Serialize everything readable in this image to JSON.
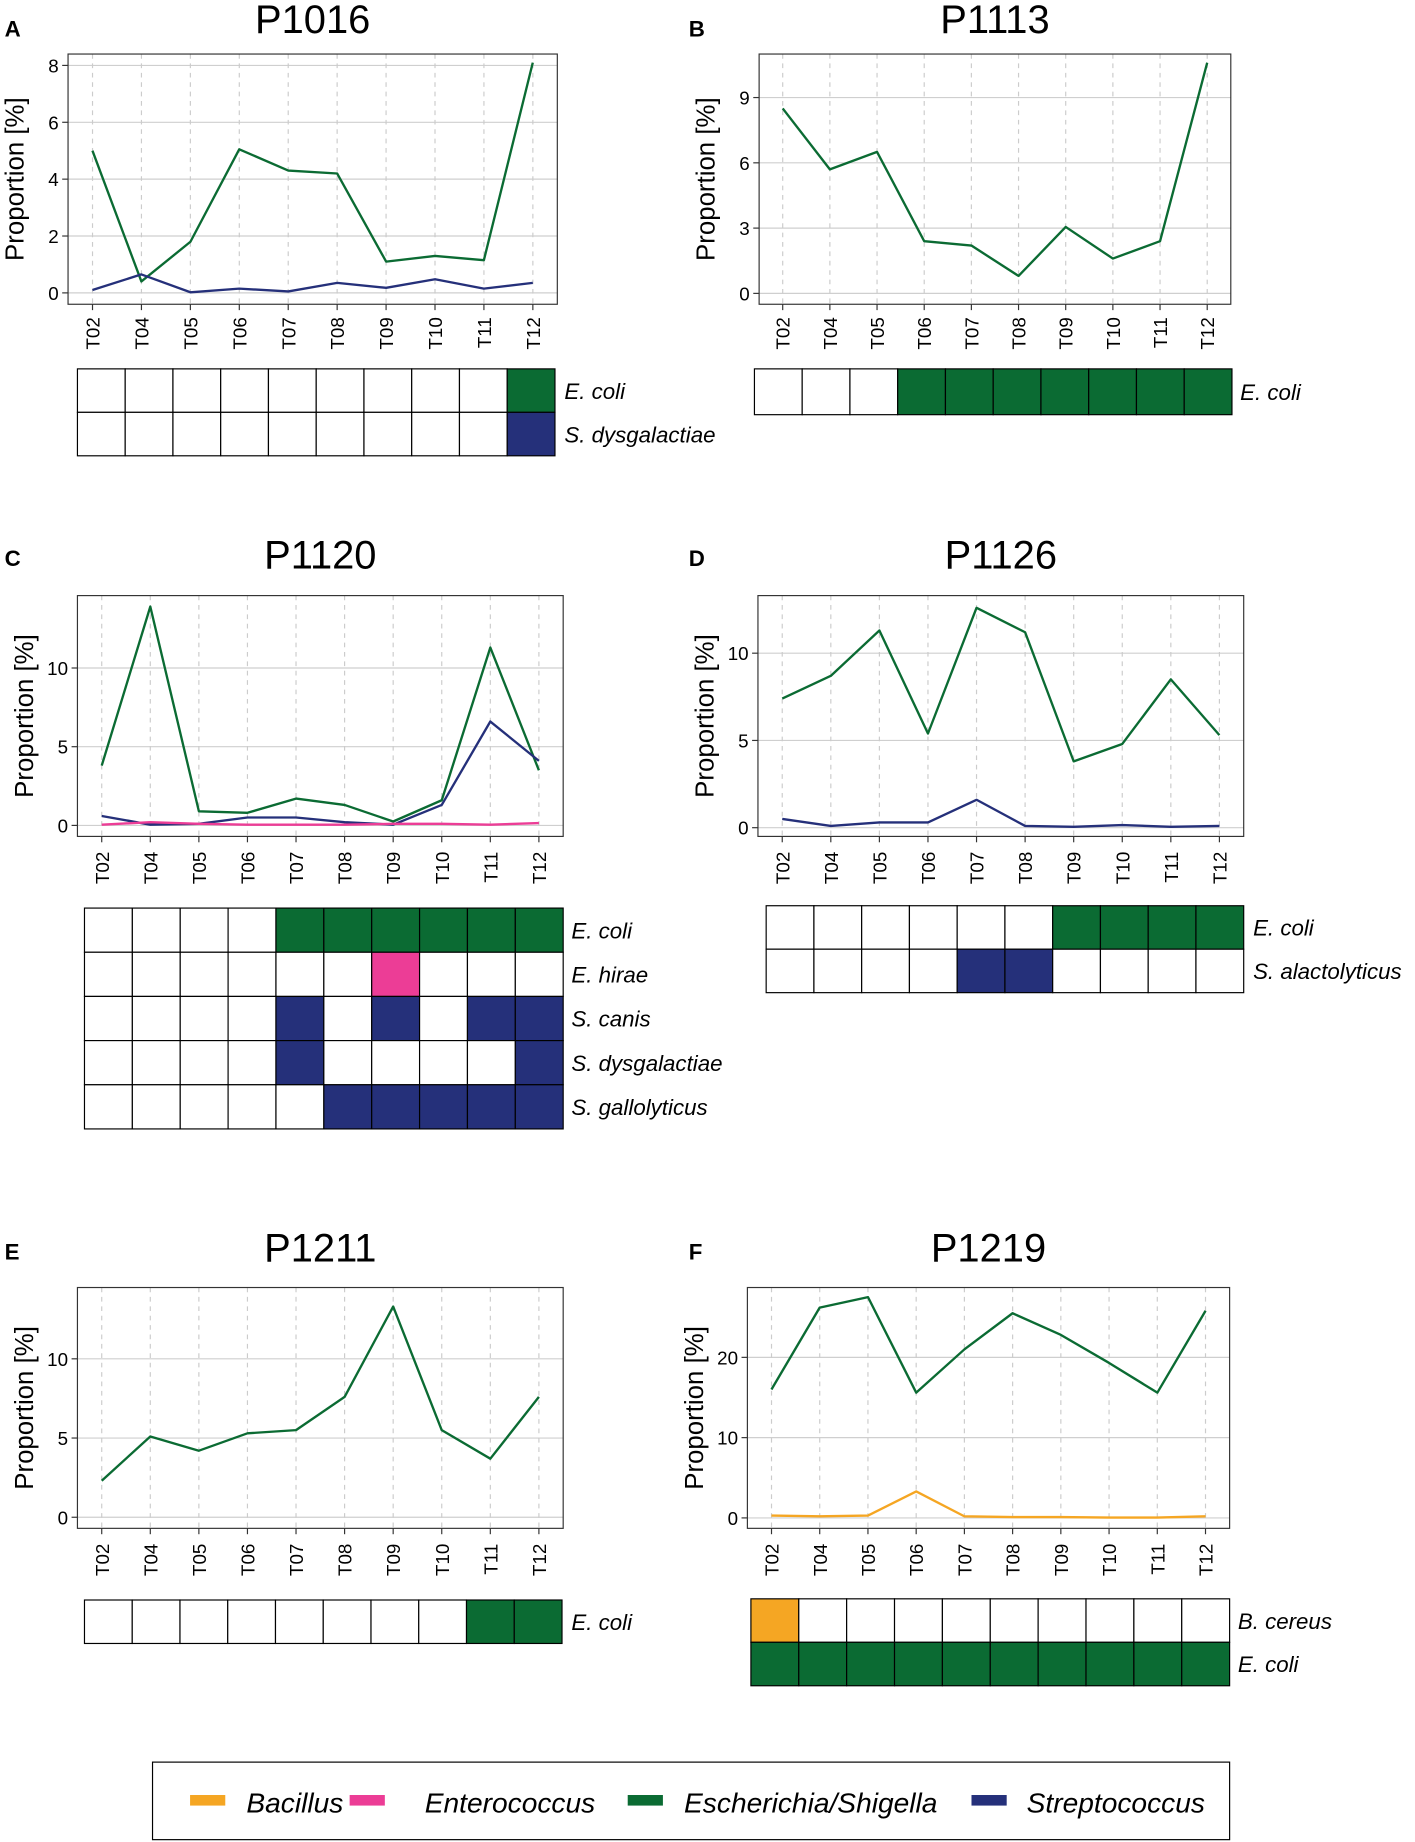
{
  "chart_data": [
    {
      "type": "line",
      "panel": "A",
      "title": "P1016",
      "ylabel": "Proportion [%]",
      "ylim": [
        -0.4,
        8.4
      ],
      "yticks": [
        0,
        2,
        4,
        6,
        8
      ],
      "categories": [
        "T02",
        "T04",
        "T05",
        "T06",
        "T07",
        "T08",
        "T09",
        "T10",
        "T11",
        "T12"
      ],
      "series": [
        {
          "name": "Escherichia/Shigella",
          "genus": "Escherichia/Shigella",
          "values": [
            5.0,
            0.4,
            1.8,
            5.05,
            4.3,
            4.2,
            1.1,
            1.3,
            1.15,
            8.1
          ]
        },
        {
          "name": "Streptococcus",
          "genus": "Streptococcus",
          "values": [
            0.1,
            0.65,
            0.02,
            0.15,
            0.05,
            0.35,
            0.18,
            0.48,
            0.15,
            0.35
          ]
        }
      ],
      "heatmap": [
        {
          "label": "E. coli",
          "genus": "Escherichia/Shigella",
          "cells": [
            0,
            0,
            0,
            0,
            0,
            0,
            0,
            0,
            0,
            1
          ]
        },
        {
          "label": "S. dysgalactiae",
          "genus": "Streptococcus",
          "cells": [
            0,
            0,
            0,
            0,
            0,
            0,
            0,
            0,
            0,
            1
          ]
        }
      ]
    },
    {
      "type": "line",
      "panel": "B",
      "title": "P1113",
      "ylabel": "Proportion [%]",
      "ylim": [
        -0.5,
        11.0
      ],
      "yticks": [
        0,
        3,
        6,
        9
      ],
      "categories": [
        "T02",
        "T04",
        "T05",
        "T06",
        "T07",
        "T08",
        "T09",
        "T10",
        "T11",
        "T12"
      ],
      "series": [
        {
          "name": "Escherichia/Shigella",
          "genus": "Escherichia/Shigella",
          "values": [
            8.5,
            5.7,
            6.5,
            2.4,
            2.2,
            0.8,
            3.05,
            1.6,
            2.4,
            10.6
          ]
        }
      ],
      "heatmap": [
        {
          "label": "E. coli",
          "genus": "Escherichia/Shigella",
          "cells": [
            0,
            0,
            0,
            1,
            1,
            1,
            1,
            1,
            1,
            1
          ]
        }
      ]
    },
    {
      "type": "line",
      "panel": "C",
      "title": "P1120",
      "ylabel": "Proportion [%]",
      "ylim": [
        -0.7,
        14.6
      ],
      "yticks": [
        0,
        5,
        10
      ],
      "categories": [
        "T02",
        "T04",
        "T05",
        "T06",
        "T07",
        "T08",
        "T09",
        "T10",
        "T11",
        "T12"
      ],
      "series": [
        {
          "name": "Escherichia/Shigella",
          "genus": "Escherichia/Shigella",
          "values": [
            3.8,
            13.9,
            0.9,
            0.8,
            1.7,
            1.3,
            0.25,
            1.6,
            11.3,
            3.5
          ]
        },
        {
          "name": "Streptococcus",
          "genus": "Streptococcus",
          "values": [
            0.6,
            0.05,
            0.1,
            0.5,
            0.5,
            0.2,
            0.05,
            1.3,
            6.6,
            4.1
          ]
        },
        {
          "name": "Enterococcus",
          "genus": "Enterococcus",
          "values": [
            0.05,
            0.2,
            0.1,
            0.05,
            0.05,
            0.05,
            0.1,
            0.1,
            0.05,
            0.15
          ]
        }
      ],
      "heatmap": [
        {
          "label": "E. coli",
          "genus": "Escherichia/Shigella",
          "cells": [
            0,
            0,
            0,
            0,
            1,
            1,
            1,
            1,
            1,
            1
          ]
        },
        {
          "label": "E. hirae",
          "genus": "Enterococcus",
          "cells": [
            0,
            0,
            0,
            0,
            0,
            0,
            1,
            0,
            0,
            0
          ]
        },
        {
          "label": "S. canis",
          "genus": "Streptococcus",
          "cells": [
            0,
            0,
            0,
            0,
            1,
            0,
            1,
            0,
            1,
            1
          ]
        },
        {
          "label": "S. dysgalactiae",
          "genus": "Streptococcus",
          "cells": [
            0,
            0,
            0,
            0,
            1,
            0,
            0,
            0,
            0,
            1
          ]
        },
        {
          "label": "S. gallolyticus",
          "genus": "Streptococcus",
          "cells": [
            0,
            0,
            0,
            0,
            0,
            1,
            1,
            1,
            1,
            1
          ]
        }
      ]
    },
    {
      "type": "line",
      "panel": "D",
      "title": "P1126",
      "ylabel": "Proportion [%]",
      "ylim": [
        -0.5,
        13.3
      ],
      "yticks": [
        0,
        5,
        10
      ],
      "categories": [
        "T02",
        "T04",
        "T05",
        "T06",
        "T07",
        "T08",
        "T09",
        "T10",
        "T11",
        "T12"
      ],
      "series": [
        {
          "name": "Escherichia/Shigella",
          "genus": "Escherichia/Shigella",
          "values": [
            7.4,
            8.7,
            11.3,
            5.4,
            12.6,
            11.2,
            3.8,
            4.8,
            8.5,
            5.3
          ]
        },
        {
          "name": "Streptococcus",
          "genus": "Streptococcus",
          "values": [
            0.5,
            0.1,
            0.3,
            0.3,
            1.6,
            0.1,
            0.05,
            0.15,
            0.05,
            0.1
          ]
        }
      ],
      "heatmap": [
        {
          "label": "E. coli",
          "genus": "Escherichia/Shigella",
          "cells": [
            0,
            0,
            0,
            0,
            0,
            0,
            1,
            1,
            1,
            1
          ]
        },
        {
          "label": "S. alactolyticus",
          "genus": "Streptococcus",
          "cells": [
            0,
            0,
            0,
            0,
            1,
            1,
            0,
            0,
            0,
            0
          ]
        }
      ]
    },
    {
      "type": "line",
      "panel": "E",
      "title": "P1211",
      "ylabel": "Proportion [%]",
      "ylim": [
        -0.7,
        14.5
      ],
      "yticks": [
        0,
        5,
        10
      ],
      "categories": [
        "T02",
        "T04",
        "T05",
        "T06",
        "T07",
        "T08",
        "T09",
        "T10",
        "T11",
        "T12"
      ],
      "series": [
        {
          "name": "Escherichia/Shigella",
          "genus": "Escherichia/Shigella",
          "values": [
            2.3,
            5.1,
            4.2,
            5.3,
            5.5,
            7.6,
            13.3,
            5.5,
            3.7,
            7.6
          ]
        }
      ],
      "heatmap": [
        {
          "label": "E. coli",
          "genus": "Escherichia/Shigella",
          "cells": [
            0,
            0,
            0,
            0,
            0,
            0,
            0,
            0,
            1,
            1
          ]
        }
      ]
    },
    {
      "type": "line",
      "panel": "F",
      "title": "P1219",
      "ylabel": "Proportion [%]",
      "ylim": [
        -1.3,
        28.7
      ],
      "yticks": [
        0,
        10,
        20
      ],
      "categories": [
        "T02",
        "T04",
        "T05",
        "T06",
        "T07",
        "T08",
        "T09",
        "T10",
        "T11",
        "T12"
      ],
      "series": [
        {
          "name": "Escherichia/Shigella",
          "genus": "Escherichia/Shigella",
          "values": [
            16.0,
            26.2,
            27.5,
            15.6,
            21.0,
            25.5,
            22.8,
            19.3,
            15.6,
            25.8
          ]
        },
        {
          "name": "Bacillus",
          "genus": "Bacillus",
          "values": [
            0.3,
            0.2,
            0.3,
            3.3,
            0.2,
            0.1,
            0.1,
            0.05,
            0.05,
            0.2
          ]
        }
      ],
      "heatmap": [
        {
          "label": "B. cereus",
          "genus": "Bacillus",
          "cells": [
            1,
            0,
            0,
            0,
            0,
            0,
            0,
            0,
            0,
            0
          ]
        },
        {
          "label": "E. coli",
          "genus": "Escherichia/Shigella",
          "cells": [
            1,
            1,
            1,
            1,
            1,
            1,
            1,
            1,
            1,
            1
          ]
        }
      ]
    }
  ],
  "legend": [
    {
      "name": "Bacillus",
      "color": "#f5a623"
    },
    {
      "name": "Enterococcus",
      "color": "#ec3d96"
    },
    {
      "name": "Escherichia/Shigella",
      "color": "#0b6b33"
    },
    {
      "name": "Streptococcus",
      "color": "#25307a"
    }
  ],
  "colors": {
    "Bacillus": "#f5a623",
    "Enterococcus": "#ec3d96",
    "Escherichia/Shigella": "#0b6b33",
    "Streptococcus": "#25307a"
  }
}
